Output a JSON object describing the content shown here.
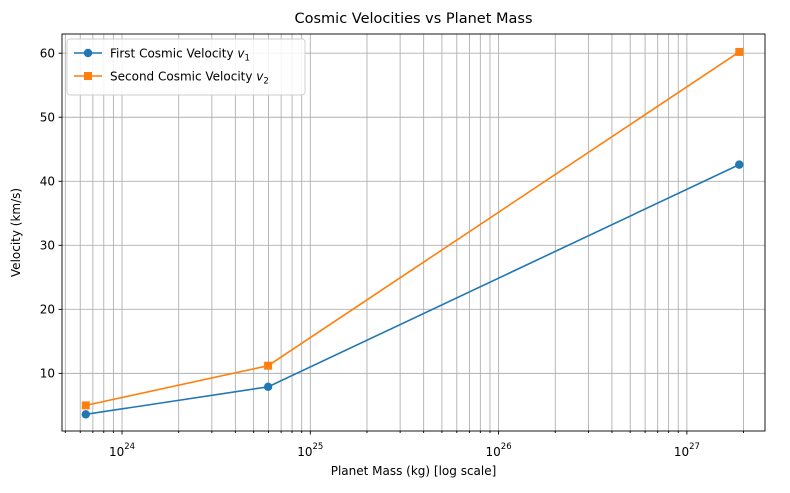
{
  "chart_data": {
    "type": "line",
    "title": "Cosmic Velocities vs Planet Mass",
    "xlabel": "Planet Mass (kg) [log scale]",
    "ylabel": "Velocity (km/s)",
    "xscale": "log",
    "xlim": [
      4.8e+23,
      2.6e+27
    ],
    "ylim": [
      1,
      63
    ],
    "grid": "both",
    "legend_position": "upper-left",
    "x_tick_labels": [
      {
        "base": "10",
        "exp": "24",
        "value": 1e+24
      },
      {
        "base": "10",
        "exp": "25",
        "value": 1e+25
      },
      {
        "base": "10",
        "exp": "26",
        "value": 1e+26
      },
      {
        "base": "10",
        "exp": "27",
        "value": 1e+27
      }
    ],
    "y_ticks": [
      10,
      20,
      30,
      40,
      50,
      60
    ],
    "series": [
      {
        "name_base": "First Cosmic Velocity ",
        "name_var": "v",
        "name_sub": "1",
        "color": "#1f77b4",
        "marker": "circle",
        "x": [
          6.42e+23,
          5.97e+24,
          1.898e+27
        ],
        "y": [
          3.6,
          7.9,
          42.6
        ]
      },
      {
        "name_base": "Second Cosmic Velocity ",
        "name_var": "v",
        "name_sub": "2",
        "color": "#ff7f0e",
        "marker": "square",
        "x": [
          6.42e+23,
          5.97e+24,
          1.898e+27
        ],
        "y": [
          5.0,
          11.2,
          60.2
        ]
      }
    ]
  }
}
